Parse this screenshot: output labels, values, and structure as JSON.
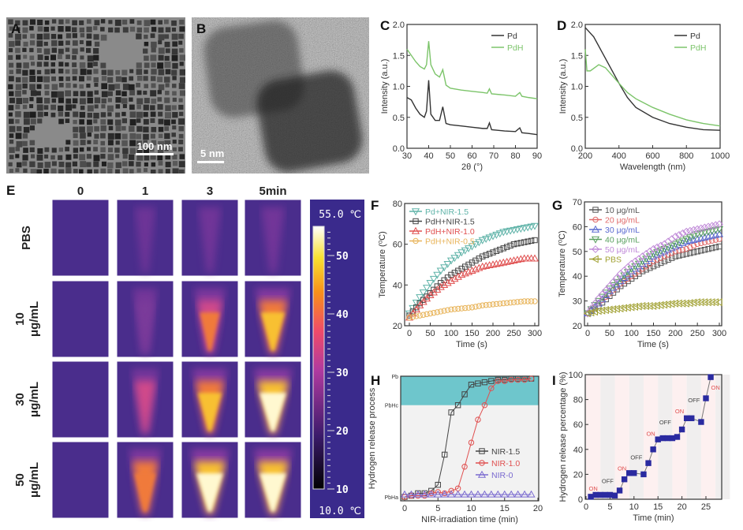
{
  "panels": {
    "A": {
      "label": "A",
      "scale_bar": "100 nm"
    },
    "B": {
      "label": "B",
      "scale_bar": "5 nm"
    },
    "E": {
      "label": "E",
      "columns": [
        "0",
        "1",
        "3",
        "5min"
      ],
      "rows": [
        [
          "PBS",
          ""
        ],
        [
          "10",
          "μg/mL"
        ],
        [
          "30",
          "μg/mL"
        ],
        [
          "50",
          "μg/mL"
        ]
      ],
      "heat_levels": [
        [
          0.0,
          0.1,
          0.2,
          0.25
        ],
        [
          0.0,
          0.3,
          0.65,
          0.85
        ],
        [
          0.0,
          0.45,
          0.85,
          1.0
        ],
        [
          0.02,
          0.7,
          1.0,
          1.0
        ]
      ],
      "colorbar": {
        "max_label": "55.0 ℃",
        "min_label": "10.0 ℃",
        "ticks": [
          "50",
          "40",
          "30",
          "20",
          "10"
        ],
        "range": [
          10,
          55
        ]
      }
    }
  },
  "chart_data": [
    {
      "panel": "C",
      "type": "line",
      "xlabel": "2θ (°)",
      "ylabel": "Intensity (a.u.)",
      "xlim": [
        30,
        90
      ],
      "ylim": [
        0,
        2
      ],
      "xticks": [
        "30",
        "40",
        "50",
        "60",
        "70",
        "80",
        "90"
      ],
      "yticks": [
        "0.0",
        "0.5",
        "1.0",
        "1.5",
        "2.0"
      ],
      "legend": "top-right",
      "series": [
        {
          "name": "Pd",
          "color": "#333333",
          "x": [
            30,
            32,
            34,
            36,
            38,
            39,
            40,
            41,
            43,
            45,
            46.5,
            48,
            50,
            55,
            60,
            65,
            67,
            68,
            69,
            75,
            80,
            82,
            83,
            86,
            90
          ],
          "y": [
            0.82,
            0.78,
            0.65,
            0.55,
            0.5,
            0.6,
            1.1,
            0.55,
            0.45,
            0.45,
            0.67,
            0.4,
            0.38,
            0.36,
            0.34,
            0.32,
            0.32,
            0.41,
            0.3,
            0.28,
            0.27,
            0.33,
            0.25,
            0.24,
            0.22
          ]
        },
        {
          "name": "PdH",
          "color": "#7cc46a",
          "x": [
            30,
            32,
            34,
            36,
            38,
            39,
            40,
            41,
            43,
            45,
            46.5,
            48,
            50,
            55,
            60,
            65,
            67,
            68,
            69,
            75,
            80,
            82,
            83,
            86,
            90
          ],
          "y": [
            1.6,
            1.5,
            1.4,
            1.32,
            1.28,
            1.35,
            1.73,
            1.35,
            1.2,
            1.15,
            1.27,
            1.02,
            0.97,
            0.94,
            0.92,
            0.9,
            0.89,
            0.96,
            0.88,
            0.86,
            0.84,
            0.9,
            0.84,
            0.82,
            0.8
          ]
        }
      ]
    },
    {
      "panel": "D",
      "type": "line",
      "xlabel": "Wavelength (nm)",
      "ylabel": "Intensity (a.u.)",
      "xlim": [
        200,
        1000
      ],
      "ylim": [
        0,
        2
      ],
      "xticks": [
        "200",
        "400",
        "600",
        "800",
        "1000"
      ],
      "yticks": [
        "0.0",
        "0.5",
        "1.0",
        "1.5",
        "2.0"
      ],
      "legend": "top-right",
      "series": [
        {
          "name": "Pd",
          "color": "#333333",
          "x": [
            200,
            250,
            300,
            350,
            400,
            450,
            500,
            600,
            700,
            800,
            900,
            1000
          ],
          "y": [
            1.95,
            1.8,
            1.55,
            1.3,
            1.05,
            0.82,
            0.66,
            0.5,
            0.4,
            0.34,
            0.3,
            0.29
          ]
        },
        {
          "name": "PdH",
          "color": "#7cc46a",
          "x": [
            200,
            210,
            230,
            280,
            320,
            400,
            450,
            500,
            600,
            700,
            800,
            900,
            1000
          ],
          "y": [
            1.6,
            1.25,
            1.25,
            1.35,
            1.3,
            1.05,
            0.9,
            0.8,
            0.66,
            0.55,
            0.46,
            0.4,
            0.36
          ]
        }
      ]
    },
    {
      "panel": "F",
      "type": "scatter",
      "xlabel": "Time (s)",
      "ylabel": "Temperature (⁰C)",
      "xlim": [
        0,
        300
      ],
      "ylim": [
        20,
        80
      ],
      "xticks": [
        "0",
        "50",
        "100",
        "150",
        "200",
        "250",
        "300"
      ],
      "yticks": [
        "20",
        "40",
        "60",
        "80"
      ],
      "legend": "top-left",
      "x": [
        0,
        25,
        50,
        75,
        100,
        125,
        150,
        175,
        200,
        225,
        250,
        275,
        300
      ],
      "series": [
        {
          "name": "Pd+NIR-1.5",
          "color": "#5fb3a8",
          "marker": "triangle-down",
          "y": [
            26,
            34,
            41,
            47,
            52,
            56,
            59,
            62,
            64,
            66,
            67,
            68,
            69
          ]
        },
        {
          "name": "PdH+NIR-1.5",
          "color": "#444444",
          "marker": "square",
          "y": [
            25,
            31,
            36,
            41,
            45,
            48,
            51,
            54,
            56,
            58,
            60,
            61,
            62
          ]
        },
        {
          "name": "PdH+NIR-1.0",
          "color": "#e05050",
          "marker": "triangle-up",
          "y": [
            24,
            30,
            35,
            39,
            42,
            45,
            47,
            49,
            50,
            51,
            52,
            53,
            53
          ]
        },
        {
          "name": "PdH+NIR-0.5",
          "color": "#e8b45a",
          "marker": "circle",
          "y": [
            24,
            25,
            26,
            27,
            28,
            28.5,
            29,
            30,
            30.5,
            31,
            31.5,
            32,
            32
          ]
        }
      ]
    },
    {
      "panel": "G",
      "type": "scatter",
      "xlabel": "Time (s)",
      "ylabel": "Temperature (⁰C)",
      "xlim": [
        0,
        300
      ],
      "ylim": [
        20,
        70
      ],
      "xticks": [
        "0",
        "50",
        "100",
        "150",
        "200",
        "250",
        "300"
      ],
      "yticks": [
        "20",
        "30",
        "40",
        "50",
        "60",
        "70"
      ],
      "legend": "top-left",
      "x": [
        0,
        25,
        50,
        75,
        100,
        125,
        150,
        175,
        200,
        225,
        250,
        275,
        300
      ],
      "series": [
        {
          "name": "10 μg/mL",
          "color": "#555555",
          "marker": "square",
          "y": [
            25,
            28,
            32,
            36,
            39,
            42,
            44,
            46,
            48,
            49,
            50,
            51,
            52
          ]
        },
        {
          "name": "20 μg/mL",
          "color": "#e06a6a",
          "marker": "circle",
          "y": [
            25,
            29,
            33,
            37,
            40,
            43,
            46,
            48,
            50,
            51,
            53,
            54,
            55
          ]
        },
        {
          "name": "30 μg/mL",
          "color": "#5a6ad0",
          "marker": "triangle-up",
          "y": [
            25,
            29,
            34,
            38,
            42,
            45,
            48,
            50,
            52,
            54,
            55,
            56,
            57
          ]
        },
        {
          "name": "40 μg/mL",
          "color": "#5aa060",
          "marker": "triangle-down",
          "y": [
            25,
            30,
            35,
            39,
            43,
            46,
            49,
            51,
            53,
            55,
            57,
            58,
            59
          ]
        },
        {
          "name": "50 μg/mL",
          "color": "#c08ad8",
          "marker": "diamond",
          "y": [
            25,
            31,
            36,
            41,
            45,
            48,
            51,
            53,
            56,
            58,
            59,
            60,
            61
          ]
        },
        {
          "name": "PBS",
          "color": "#a0a030",
          "marker": "triangle-left",
          "y": [
            25,
            26,
            26.5,
            27,
            27.5,
            28,
            28,
            28.5,
            29,
            29,
            29.5,
            29.5,
            29.5
          ]
        }
      ]
    },
    {
      "panel": "H",
      "type": "line",
      "xlabel": "NIR-irradiation time (min)",
      "ylabel": "Hydrogen release process",
      "xlim": [
        0,
        20
      ],
      "ylim": [
        0,
        1
      ],
      "xticks": [
        "0",
        "5",
        "10",
        "15",
        "20"
      ],
      "ycategories": [
        {
          "label": "PbHa",
          "value": 0
        },
        {
          "label": "PbHc",
          "value": 0.76
        },
        {
          "label": "Pb",
          "value": 1
        }
      ],
      "legend": "center-right",
      "x": [
        0,
        1,
        2,
        3,
        4,
        5,
        6,
        7,
        8,
        9,
        10,
        11,
        12,
        13,
        14,
        15,
        16,
        17,
        18,
        19
      ],
      "series": [
        {
          "name": "NIR-1.5",
          "color": "#444444",
          "marker": "square",
          "y": [
            0,
            0.01,
            0.03,
            0.03,
            0.05,
            0.1,
            0.35,
            0.7,
            0.76,
            0.85,
            0.93,
            0.94,
            0.95,
            0.96,
            0.97,
            0.97,
            0.98,
            0.98,
            0.98,
            0.98
          ]
        },
        {
          "name": "NIR-1.0",
          "color": "#e05050",
          "marker": "circle",
          "y": [
            0,
            0.01,
            0.01,
            0.01,
            0.03,
            0.04,
            0.03,
            0.05,
            0.07,
            0.25,
            0.45,
            0.64,
            0.76,
            0.9,
            0.96,
            0.96,
            0.97,
            0.97,
            0.97,
            0.98
          ]
        },
        {
          "name": "NIR-0",
          "color": "#7a6ad0",
          "marker": "triangle-up",
          "y": [
            0.02,
            0.02,
            0.02,
            0.02,
            0.02,
            0.02,
            0.02,
            0.02,
            0.02,
            0.02,
            0.02,
            0.02,
            0.02,
            0.02,
            0.02,
            0.02,
            0.02,
            0.02,
            0.02,
            0.02
          ]
        }
      ]
    },
    {
      "panel": "I",
      "type": "line",
      "xlabel": "Time (min)",
      "ylabel": "Hydrogen release percentage (%)",
      "xlim": [
        0,
        28
      ],
      "ylim": [
        0,
        100
      ],
      "xticks": [
        "0",
        "5",
        "10",
        "15",
        "20",
        "25"
      ],
      "yticks": [
        "0",
        "20",
        "40",
        "60",
        "80",
        "100"
      ],
      "series": [
        {
          "color": "#2a2aa0",
          "marker": "filled-square",
          "x": [
            1,
            2,
            3,
            4,
            5,
            6,
            7,
            8,
            9,
            10,
            12,
            13,
            14,
            15,
            16,
            17,
            18,
            19,
            20,
            21,
            22,
            24,
            25,
            26
          ],
          "y": [
            2,
            3.5,
            3.5,
            3.5,
            3.5,
            3,
            7,
            16,
            21,
            21,
            20,
            29,
            40,
            48,
            49,
            49,
            49,
            50,
            56,
            65,
            65,
            62,
            81,
            98
          ]
        }
      ],
      "annotations": [
        {
          "text": "ON",
          "x": 1.5,
          "y": 7,
          "color": "#e05050"
        },
        {
          "text": "OFF",
          "x": 4.5,
          "y": 13,
          "color": "#444444"
        },
        {
          "text": "ON",
          "x": 7.5,
          "y": 23,
          "color": "#e05050"
        },
        {
          "text": "OFF",
          "x": 10.5,
          "y": 32,
          "color": "#444444"
        },
        {
          "text": "ON",
          "x": 13.5,
          "y": 51,
          "color": "#e05050"
        },
        {
          "text": "OFF",
          "x": 16.5,
          "y": 60,
          "color": "#444444"
        },
        {
          "text": "ON",
          "x": 19.5,
          "y": 69,
          "color": "#e05050"
        },
        {
          "text": "OFF",
          "x": 22.5,
          "y": 78,
          "color": "#444444"
        },
        {
          "text": "ON",
          "x": 27,
          "y": 88,
          "color": "#e05050"
        }
      ]
    }
  ]
}
